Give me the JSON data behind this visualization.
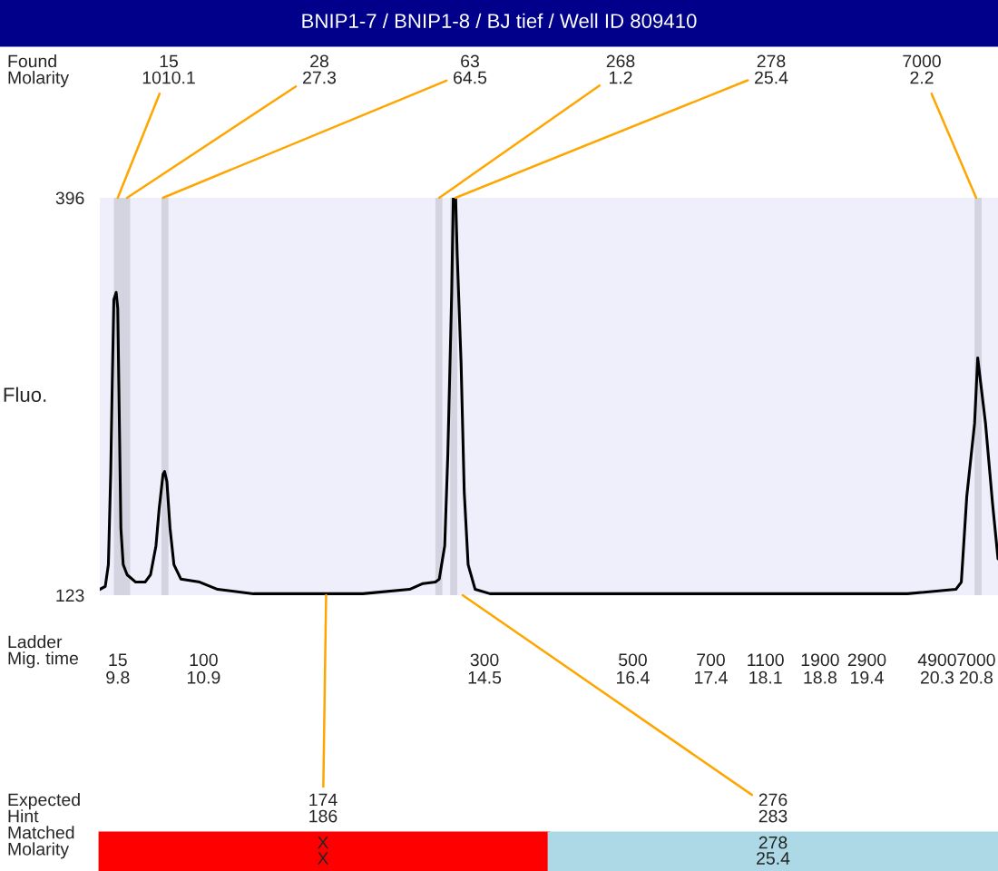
{
  "chart_data": {
    "type": "line",
    "title": "BNIP1-7 / BNIP1-8 / BJ tief / Well ID 809410",
    "ylabel": "Fluo.",
    "x": [
      9.57,
      9.64,
      9.68,
      9.71,
      9.73,
      9.75,
      9.78,
      9.8,
      9.82,
      9.84,
      9.87,
      9.92,
      10.03,
      10.15,
      10.22,
      10.29,
      10.33,
      10.38,
      10.4,
      10.43,
      10.47,
      10.52,
      10.61,
      10.85,
      11.08,
      11.54,
      12.94,
      13.54,
      13.71,
      13.87,
      13.92,
      13.99,
      14.03,
      14.08,
      14.1,
      14.13,
      14.15,
      14.2,
      14.24,
      14.29,
      14.38,
      14.57,
      17.59,
      19.92,
      20.54,
      20.61,
      20.68,
      20.78,
      20.82,
      20.92,
      21.01,
      21.08
    ],
    "series": [
      {
        "color": "#000000",
        "values": [
          127,
          129,
          144,
          207,
          270,
          326,
          331,
          320,
          245,
          169,
          144,
          137,
          132,
          132,
          137,
          157,
          182,
          206,
          208,
          201,
          169,
          144,
          134,
          132,
          127,
          124,
          124,
          127,
          131,
          132,
          134,
          157,
          220,
          332,
          396,
          396,
          357,
          282,
          194,
          144,
          127,
          124,
          124,
          124,
          127,
          132,
          191,
          241,
          286,
          241,
          186,
          148
        ]
      }
    ],
    "xlim": [
      9.57,
      21.08
    ],
    "xticks": [
      9.8,
      10.9,
      14.5,
      16.4,
      17.4,
      18.1,
      18.8,
      19.4,
      20.3,
      20.8
    ],
    "ylim": [
      123,
      396
    ],
    "yticks": [
      123,
      396
    ],
    "grid": false,
    "legend": false,
    "marker": "none",
    "line_style": "solid",
    "bands": [
      {
        "axis": "x",
        "from": 9.75,
        "to": 9.96,
        "color": "#d4d4e0"
      },
      {
        "axis": "x",
        "from": 10.36,
        "to": 10.45,
        "color": "#d4d4e0"
      },
      {
        "axis": "x",
        "from": 13.87,
        "to": 13.96,
        "color": "#d4d4e0"
      },
      {
        "axis": "x",
        "from": 14.06,
        "to": 14.15,
        "color": "#d4d4e0"
      },
      {
        "axis": "x",
        "from": 20.78,
        "to": 20.87,
        "color": "#d4d4e0"
      }
    ],
    "annotations": [
      "Found\nMolarity",
      "Ladder\nMig. time",
      "Expected\nHint\nMatched\nMolarity",
      {
        "text": "15\n1010.1",
        "x": 9.8,
        "y": 396
      },
      {
        "text": "28\n27.3",
        "x": 9.92,
        "y": 396
      },
      {
        "text": "63\n64.5",
        "x": 10.38,
        "y": 396
      },
      {
        "text": "268\n1.2",
        "x": 13.92,
        "y": 396
      },
      {
        "text": "278\n25.4",
        "x": 14.13,
        "y": 396
      },
      {
        "text": "7000\n2.2",
        "x": 20.8,
        "y": 396
      },
      "15",
      "100",
      "300",
      "500",
      "700",
      "1100",
      "1900",
      "2900",
      "4900",
      "7000",
      "X\nX",
      "278\n25.4",
      {
        "text": "174\n186",
        "x": 12.47,
        "y": 123
      },
      {
        "text": "276\n283",
        "x": 14.22,
        "y": 123
      }
    ]
  }
}
